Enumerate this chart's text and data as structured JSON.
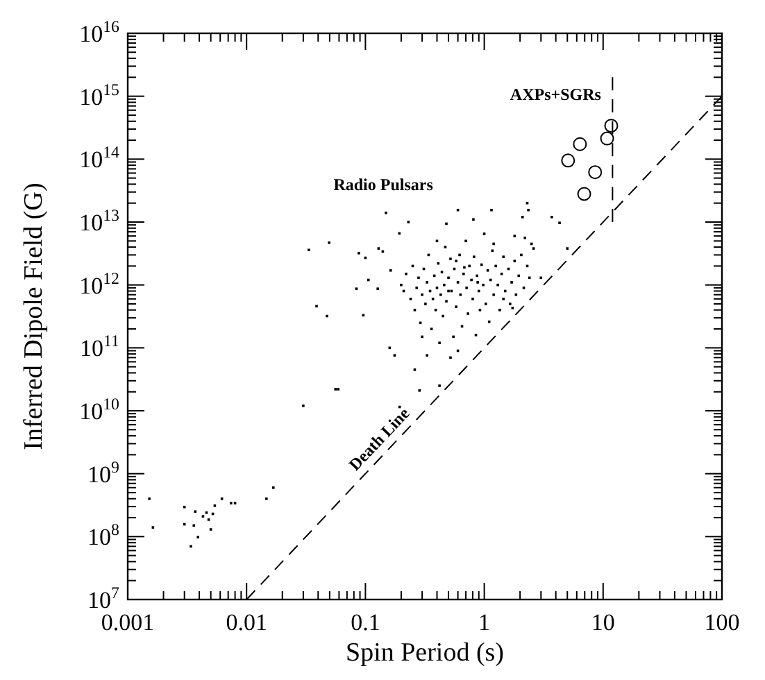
{
  "chart_data": {
    "type": "scatter",
    "xlabel": "Spin Period (s)",
    "ylabel": "Inferred Dipole Field (G)",
    "log": "xy",
    "grid": false,
    "xlim": [
      0.001,
      100
    ],
    "ylim": [
      10000000.0,
      1e+16
    ],
    "xticks": [
      0.001,
      0.01,
      0.1,
      1,
      10,
      100
    ],
    "yticks": [
      {
        "value": 10000000.0,
        "label": "10$^{7}$"
      },
      {
        "value": 100000000.0,
        "label": "10$^{8}$"
      },
      {
        "value": 1000000000.0,
        "label": "10$^{9}$"
      },
      {
        "value": 10000000000.0,
        "label": "10$^{10}$"
      },
      {
        "value": 100000000000.0,
        "label": "10$^{11}$"
      },
      {
        "value": 1000000000000.0,
        "label": "10$^{12}$"
      },
      {
        "value": 10000000000000.0,
        "label": "10$^{13}$"
      },
      {
        "value": 100000000000000.0,
        "label": "10$^{14}$"
      },
      {
        "value": 1000000000000000.0,
        "label": "10$^{15}$"
      },
      {
        "value": 1e+16,
        "label": "10$^{16}$"
      }
    ],
    "annotations": [
      "Radio Pulsars",
      "AXPs+SGRs",
      "Death Line"
    ],
    "series": [
      {
        "marker": "square",
        "color": "#000000",
        "x": [
          0.00152,
          0.00163,
          0.003,
          0.003,
          0.0034,
          0.0037,
          0.0039,
          0.0036,
          0.0043,
          0.0046,
          0.0048,
          0.005,
          0.0052,
          0.0054,
          0.0062,
          0.0074,
          0.008,
          0.0147,
          0.0168,
          0.03,
          0.0334,
          0.0388,
          0.0475,
          0.0495,
          0.056,
          0.059,
          0.084,
          0.088,
          0.096,
          0.1,
          0.106,
          0.127,
          0.129,
          0.14,
          0.149,
          0.163,
          0.16,
          0.176,
          0.194,
          0.193,
          0.23,
          0.26,
          0.285,
          0.33,
          0.42,
          0.48,
          0.6,
          0.52,
          0.81,
          1.15,
          1.8,
          2.3,
          2.35,
          2.1,
          3.7,
          4.3,
          5.0,
          3.0,
          2.2,
          2.6,
          1.73,
          1.45,
          0.2,
          0.21,
          0.22,
          0.24,
          0.25,
          0.26,
          0.27,
          0.28,
          0.29,
          0.3,
          0.31,
          0.32,
          0.33,
          0.34,
          0.35,
          0.36,
          0.37,
          0.38,
          0.39,
          0.4,
          0.41,
          0.42,
          0.43,
          0.44,
          0.45,
          0.46,
          0.47,
          0.48,
          0.5,
          0.52,
          0.53,
          0.55,
          0.56,
          0.58,
          0.6,
          0.62,
          0.63,
          0.65,
          0.67,
          0.7,
          0.71,
          0.73,
          0.75,
          0.78,
          0.8,
          0.82,
          0.85,
          0.87,
          0.9,
          0.92,
          0.95,
          0.98,
          1.0,
          1.03,
          1.07,
          1.1,
          1.13,
          1.17,
          1.2,
          1.25,
          1.3,
          1.35,
          1.4,
          1.45,
          1.5,
          1.6,
          1.65,
          1.7,
          1.8,
          1.85,
          1.95,
          2.05,
          2.15,
          2.3,
          2.4,
          2.5,
          0.58,
          0.68,
          0.88,
          0.5,
          0.4,
          1.2,
          0.3,
          0.6
        ],
        "values": [
          400000000.0,
          140000000.0,
          295000000.0,
          157000000.0,
          70000000.0,
          250000000.0,
          98000000.0,
          150000000.0,
          210000000.0,
          240000000.0,
          186000000.0,
          130000000.0,
          230000000.0,
          310000000.0,
          400000000.0,
          340000000.0,
          340000000.0,
          400000000.0,
          600000000.0,
          12000000000.0,
          3600000000000.0,
          460000000000.0,
          320000000000.0,
          4700000000000.0,
          22000000000.0,
          22000000000.0,
          870000000000.0,
          3200000000000.0,
          330000000000.0,
          2700000000000.0,
          1200000000000.0,
          870000000000.0,
          3800000000000.0,
          3400000000000.0,
          14000000000000.0,
          1700000000000.0,
          100000000000.0,
          76000000000.0,
          11500000000.0,
          6600000000000.0,
          10000000000000.0,
          45000000000.0,
          21000000000.0,
          76000000000.0,
          25000000000.0,
          9400000000000.0,
          15500000000000.0,
          70000000000.0,
          11000000000000.0,
          15500000000000.0,
          6000000000000.0,
          20000000000000.0,
          15500000000000.0,
          12000000000000.0,
          12000000000000.0,
          9700000000000.0,
          3800000000000.0,
          1300000000000.0,
          5600000000000.0,
          3800000000000.0,
          430000000000.0,
          600000000000.0,
          1000000000000.0,
          800000000000.0,
          1500000000000.0,
          600000000000.0,
          2000000000000.0,
          400000000000.0,
          900000000000.0,
          1300000000000.0,
          250000000000.0,
          700000000000.0,
          1800000000000.0,
          500000000000.0,
          1100000000000.0,
          3000000000000.0,
          800000000000.0,
          200000000000.0,
          600000000000.0,
          1400000000000.0,
          400000000000.0,
          900000000000.0,
          2200000000000.0,
          120000000000.0,
          700000000000.0,
          1600000000000.0,
          320000000000.0,
          1000000000000.0,
          4000000000000.0,
          550000000000.0,
          1300000000000.0,
          2600000000000.0,
          800000000000.0,
          150000000000.0,
          1800000000000.0,
          450000000000.0,
          1100000000000.0,
          3000000000000.0,
          700000000000.0,
          220000000000.0,
          1500000000000.0,
          5000000000000.0,
          900000000000.0,
          350000000000.0,
          2000000000000.0,
          1200000000000.0,
          600000000000.0,
          2800000000000.0,
          160000000000.0,
          1400000000000.0,
          800000000000.0,
          400000000000.0,
          2100000000000.0,
          1000000000000.0,
          6500000000000.0,
          500000000000.0,
          1700000000000.0,
          260000000000.0,
          1200000000000.0,
          3500000000000.0,
          700000000000.0,
          2000000000000.0,
          1000000000000.0,
          400000000000.0,
          1500000000000.0,
          2800000000000.0,
          800000000000.0,
          1800000000000.0,
          500000000000.0,
          1100000000000.0,
          2400000000000.0,
          700000000000.0,
          1400000000000.0,
          3000000000000.0,
          900000000000.0,
          2000000000000.0,
          1300000000000.0,
          4500000000000.0,
          2400000000000.0,
          1900000000000.0,
          1100000000000.0,
          800000000000.0,
          5000000000000.0,
          4500000000000.0,
          150000000000.0,
          90000000000.0
        ]
      },
      {
        "marker": "circle",
        "color": "#000000",
        "x": [
          5.07,
          6.38,
          6.93,
          8.56,
          10.8,
          11.7
        ],
        "values": [
          95000000000000.0,
          173000000000000.0,
          28000000000000.0,
          62000000000000.0,
          213000000000000.0,
          340000000000000.0
        ]
      },
      {
        "type": "line",
        "marker": "none",
        "line_style": "dashed",
        "color": "#000000",
        "x": [
          0.01,
          100
        ],
        "values": [
          10000000.0,
          1000000000000000.0
        ]
      },
      {
        "type": "line",
        "marker": "none",
        "line_style": "dashed",
        "color": "#000000",
        "x": [
          12,
          12
        ],
        "values": [
          10000000000000.0,
          2000000000000000.0
        ]
      }
    ]
  }
}
